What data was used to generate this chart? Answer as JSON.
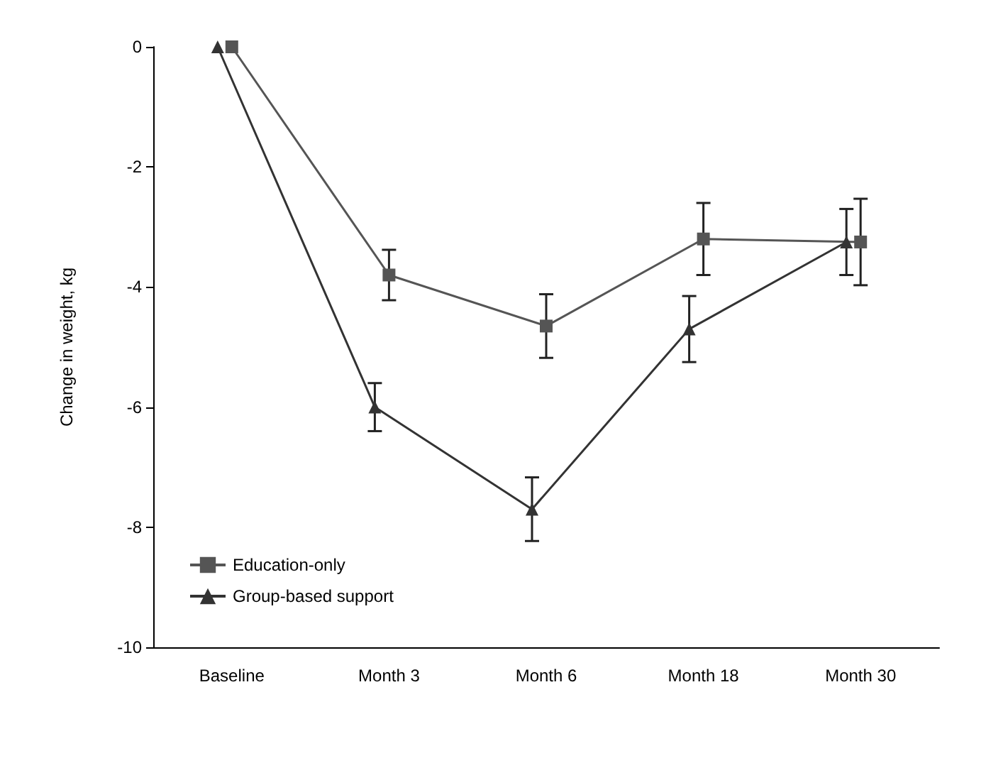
{
  "chart_data": {
    "type": "line",
    "ylabel": "Change in weight, kg",
    "categories": [
      "Baseline",
      "Month 3",
      "Month 6",
      "Month 18",
      "Month 30"
    ],
    "series": [
      {
        "name": "Education-only",
        "color": "#555555",
        "marker": "square",
        "values": [
          0,
          -3.8,
          -4.65,
          -3.2,
          -3.25
        ],
        "errors": [
          null,
          0.42,
          0.53,
          0.6,
          0.72
        ]
      },
      {
        "name": "Group-based support",
        "color": "#333333",
        "marker": "triangle",
        "values": [
          0,
          -6.0,
          -7.7,
          -4.7,
          -3.25
        ],
        "errors": [
          null,
          0.4,
          0.53,
          0.55,
          0.55
        ]
      }
    ],
    "ylim": [
      -10,
      0
    ],
    "yticks": [
      0,
      -2,
      -4,
      -6,
      -8,
      -10
    ],
    "grid": false,
    "legend": "bottom left"
  }
}
